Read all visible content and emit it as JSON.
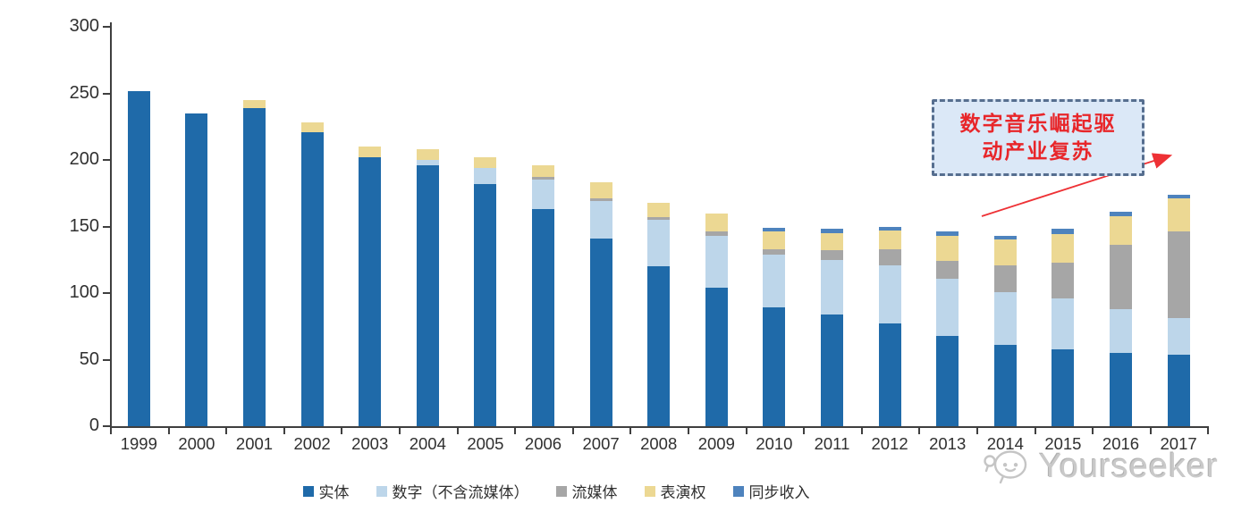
{
  "chart_data": {
    "type": "bar",
    "stacked": true,
    "title": "",
    "xlabel": "",
    "ylabel": "",
    "ylim": [
      0,
      300
    ],
    "yticks": [
      0,
      50,
      100,
      150,
      200,
      250,
      300
    ],
    "grid": false,
    "legend_position": "bottom",
    "categories": [
      "1999",
      "2000",
      "2001",
      "2002",
      "2003",
      "2004",
      "2005",
      "2006",
      "2007",
      "2008",
      "2009",
      "2010",
      "2011",
      "2012",
      "2013",
      "2014",
      "2015",
      "2016",
      "2017"
    ],
    "series": [
      {
        "name": "实体",
        "color": "#1f6aa9",
        "values": [
          252,
          235,
          239,
          221,
          202,
          196,
          182,
          163,
          141,
          120,
          104,
          89,
          84,
          77,
          68,
          61,
          58,
          55,
          54
        ]
      },
      {
        "name": "数字（不含流媒体）",
        "color": "#bdd6ea",
        "values": [
          0,
          0,
          0,
          0,
          0,
          4,
          12,
          22,
          28,
          35,
          39,
          40,
          41,
          44,
          43,
          40,
          38,
          33,
          27
        ]
      },
      {
        "name": "流媒体",
        "color": "#a6a6a6",
        "values": [
          0,
          0,
          0,
          0,
          0,
          0,
          0,
          2,
          2,
          2,
          3,
          4,
          7,
          12,
          13,
          20,
          27,
          48,
          65
        ]
      },
      {
        "name": "表演权",
        "color": "#ecd893",
        "values": [
          0,
          0,
          6,
          7,
          8,
          8,
          8,
          9,
          12,
          11,
          14,
          13,
          13,
          14,
          19,
          19,
          21,
          22,
          25
        ]
      },
      {
        "name": "同步收入",
        "color": "#4e83bd",
        "values": [
          0,
          0,
          0,
          0,
          0,
          0,
          0,
          0,
          0,
          0,
          0,
          3,
          3,
          3,
          3,
          3,
          4,
          3,
          3
        ]
      }
    ]
  },
  "annotation": {
    "line1": "数字音乐崛起驱",
    "line2": "动产业复苏",
    "text_color": "#e8262a",
    "box_fill": "#dbe8f7",
    "box_border": "#566e8f",
    "arrow_color": "#ee3135"
  },
  "watermark": {
    "text": "Yourseeker"
  }
}
